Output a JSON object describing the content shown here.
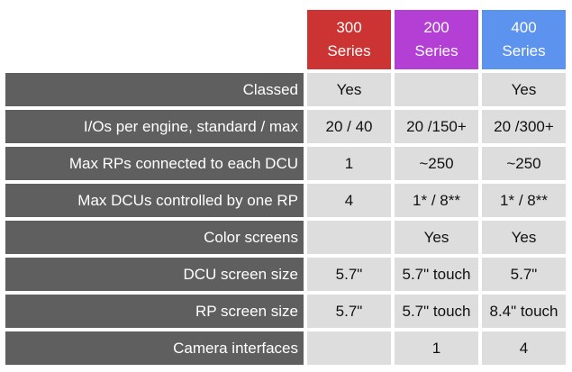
{
  "series": [
    {
      "line1": "300",
      "line2": "Series",
      "color": "#cc3333"
    },
    {
      "line1": "200",
      "line2": "Series",
      "color": "#b33fd4"
    },
    {
      "line1": "400",
      "line2": "Series",
      "color": "#5c93ee"
    }
  ],
  "rows": [
    {
      "label": "Classed",
      "values": [
        "Yes",
        "",
        "Yes"
      ]
    },
    {
      "label": "I/Os per engine, standard / max",
      "values": [
        "20 / 40",
        "20 /150+",
        "20 /300+"
      ]
    },
    {
      "label": "Max RPs connected to each DCU",
      "values": [
        "1",
        "~250",
        "~250"
      ]
    },
    {
      "label": "Max DCUs controlled by one RP",
      "values": [
        "4",
        "1* / 8**",
        "1* / 8**"
      ]
    },
    {
      "label": "Color screens",
      "values": [
        "",
        "Yes",
        "Yes"
      ]
    },
    {
      "label": "DCU screen size",
      "values": [
        "5.7\"",
        "5.7\" touch",
        "5.7\""
      ]
    },
    {
      "label": "RP screen size",
      "values": [
        "5.7\"",
        "5.7\" touch",
        "8.4\" touch"
      ]
    },
    {
      "label": "Camera interfaces",
      "values": [
        "",
        "1",
        "4"
      ]
    }
  ]
}
